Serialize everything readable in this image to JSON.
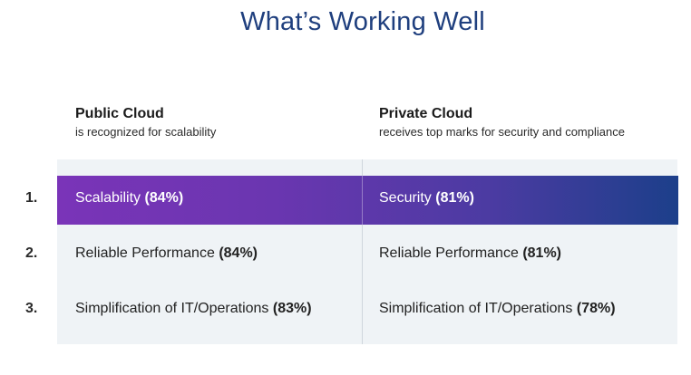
{
  "title": "What’s Working Well",
  "columns": [
    {
      "heading": "Public Cloud",
      "subheading": "is recognized for scalability"
    },
    {
      "heading": "Private Cloud",
      "subheading": "receives top marks for security and compliance"
    }
  ],
  "rows": [
    {
      "rank": "1.",
      "public": {
        "label": "Scalability",
        "pct": "(84%)"
      },
      "private": {
        "label": "Security",
        "pct": "(81%)"
      }
    },
    {
      "rank": "2.",
      "public": {
        "label": "Reliable Performance",
        "pct": "(84%)"
      },
      "private": {
        "label": "Reliable Performance",
        "pct": "(81%)"
      }
    },
    {
      "rank": "3.",
      "public": {
        "label": "Simplification of IT/Operations",
        "pct": "(83%)"
      },
      "private": {
        "label": "Simplification of IT/Operations",
        "pct": "(78%)"
      }
    }
  ],
  "colors": {
    "title": "#1f3f7e",
    "highlight_start": "#7a34b8",
    "highlight_end": "#1c3f8a",
    "panel": "#eff3f6"
  }
}
